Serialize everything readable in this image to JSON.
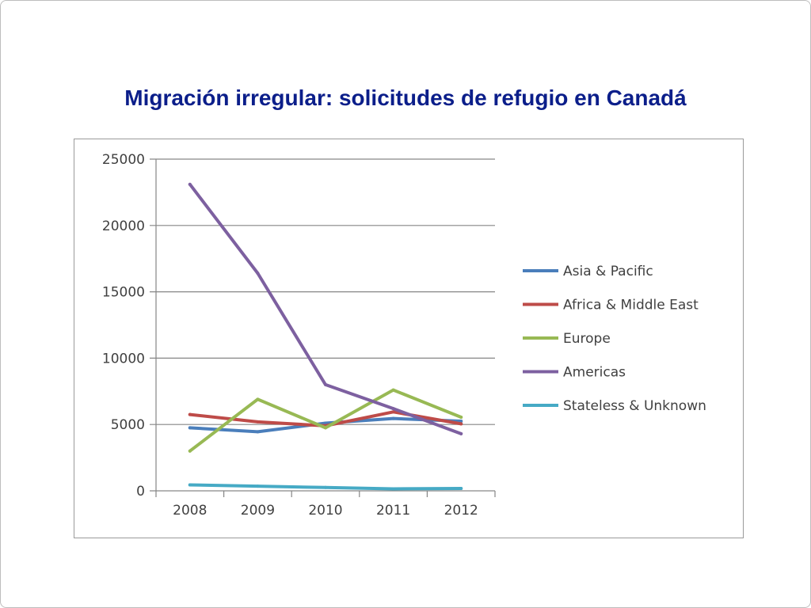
{
  "slide": {
    "title": "Migración irregular: solicitudes de refugio en Canadá"
  },
  "chart_data": {
    "type": "line",
    "x": [
      "2008",
      "2009",
      "2010",
      "2011",
      "2012"
    ],
    "ylim": [
      0,
      25000
    ],
    "yticks": [
      0,
      5000,
      10000,
      15000,
      20000,
      25000
    ],
    "grid": true,
    "legend_position": "right",
    "series": [
      {
        "name": "Asia & Pacific",
        "color": "#4a7ebb",
        "values": [
          4750,
          4450,
          5100,
          5450,
          5250
        ]
      },
      {
        "name": "Africa & Middle East",
        "color": "#be4b48",
        "values": [
          5750,
          5200,
          4900,
          5950,
          5050
        ]
      },
      {
        "name": "Europe",
        "color": "#98b954",
        "values": [
          3000,
          6900,
          4750,
          7600,
          5550
        ]
      },
      {
        "name": "Americas",
        "color": "#7d60a0",
        "values": [
          23100,
          16400,
          8000,
          6200,
          4300
        ]
      },
      {
        "name": "Stateless & Unknown",
        "color": "#46aac5",
        "values": [
          450,
          350,
          250,
          150,
          180
        ]
      }
    ]
  }
}
